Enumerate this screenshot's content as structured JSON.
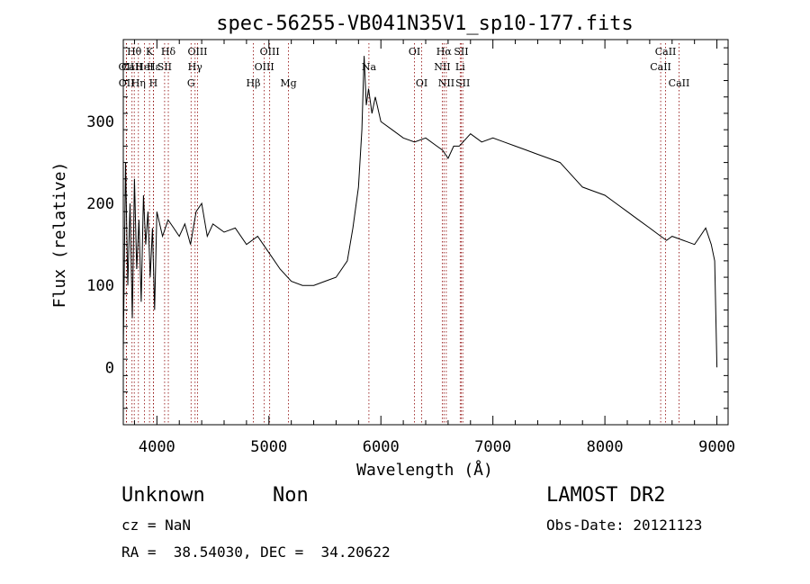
{
  "chart_data": {
    "type": "line",
    "title": "spec-56255-VB041N35V1_sp10-177.fits",
    "xlabel": "Wavelength (Å)",
    "ylabel": "Flux (relative)",
    "xlim": [
      3700,
      9100
    ],
    "ylim": [
      -70,
      400
    ],
    "x_ticks": [
      4000,
      5000,
      6000,
      7000,
      8000,
      9000
    ],
    "y_ticks": [
      0,
      100,
      200,
      300
    ],
    "line_color": "#000000",
    "marker_color": "#8b0000",
    "series": [
      {
        "x": [
          3700,
          3720,
          3740,
          3760,
          3780,
          3800,
          3820,
          3840,
          3860,
          3880,
          3900,
          3920,
          3940,
          3960,
          3980,
          4000,
          4050,
          4100,
          4150,
          4200,
          4250,
          4300,
          4350,
          4400,
          4450,
          4500,
          4600,
          4700,
          4800,
          4900,
          5000,
          5100,
          5200,
          5300,
          5400,
          5500,
          5600,
          5700,
          5750,
          5800,
          5830,
          5850,
          5870,
          5890,
          5920,
          5950,
          6000,
          6100,
          6200,
          6300,
          6400,
          6500,
          6550,
          6600,
          6650,
          6700,
          6800,
          6900,
          7000,
          7100,
          7200,
          7300,
          7400,
          7500,
          7600,
          7700,
          7800,
          7900,
          8000,
          8100,
          8200,
          8300,
          8400,
          8450,
          8500,
          8550,
          8600,
          8700,
          8800,
          8850,
          8900,
          8950,
          8980,
          9000
        ],
        "y": [
          20,
          250,
          100,
          200,
          60,
          230,
          120,
          180,
          80,
          210,
          150,
          190,
          110,
          170,
          70,
          190,
          160,
          180,
          170,
          160,
          175,
          150,
          190,
          200,
          160,
          175,
          165,
          170,
          150,
          160,
          140,
          120,
          105,
          100,
          100,
          105,
          110,
          130,
          170,
          220,
          290,
          380,
          320,
          340,
          310,
          330,
          300,
          290,
          280,
          275,
          280,
          270,
          265,
          255,
          270,
          270,
          285,
          275,
          280,
          275,
          270,
          265,
          260,
          255,
          250,
          235,
          220,
          215,
          210,
          200,
          190,
          180,
          170,
          165,
          160,
          155,
          160,
          155,
          150,
          160,
          170,
          150,
          130,
          0
        ]
      }
    ],
    "line_markers": [
      {
        "label": "Hθ",
        "x": 3798,
        "row": 0
      },
      {
        "label": "OII",
        "x": 3727,
        "row": 1
      },
      {
        "label": "OII",
        "x": 3729,
        "row": 2
      },
      {
        "label": "CaII",
        "x": 3778,
        "row": 1
      },
      {
        "label": "K",
        "x": 3934,
        "row": 0
      },
      {
        "label": "Hε",
        "x": 3970,
        "row": 1
      },
      {
        "label": "Hη",
        "x": 3835,
        "row": 2
      },
      {
        "label": "H",
        "x": 3969,
        "row": 2
      },
      {
        "label": "HeI",
        "x": 3889,
        "row": 1
      },
      {
        "label": "Hδ",
        "x": 4102,
        "row": 0
      },
      {
        "label": "SII",
        "x": 4069,
        "row": 1
      },
      {
        "label": "OIII",
        "x": 4363,
        "row": 0
      },
      {
        "label": "Hγ",
        "x": 4341,
        "row": 1
      },
      {
        "label": "G",
        "x": 4305,
        "row": 2
      },
      {
        "label": "Hβ",
        "x": 4861,
        "row": 2
      },
      {
        "label": "OIII",
        "x": 5007,
        "row": 0
      },
      {
        "label": "OIII",
        "x": 4959,
        "row": 1
      },
      {
        "label": "Mg",
        "x": 5175,
        "row": 2
      },
      {
        "label": "Na",
        "x": 5893,
        "row": 1
      },
      {
        "label": "OI",
        "x": 6300,
        "row": 0
      },
      {
        "label": "OI",
        "x": 6364,
        "row": 2
      },
      {
        "label": "Hα",
        "x": 6563,
        "row": 0
      },
      {
        "label": "NII",
        "x": 6548,
        "row": 1
      },
      {
        "label": "NII",
        "x": 6584,
        "row": 2
      },
      {
        "label": "SII",
        "x": 6717,
        "row": 0
      },
      {
        "label": "Li",
        "x": 6708,
        "row": 1
      },
      {
        "label": "SII",
        "x": 6731,
        "row": 2
      },
      {
        "label": "CaII",
        "x": 8542,
        "row": 0
      },
      {
        "label": "CaII",
        "x": 8498,
        "row": 1
      },
      {
        "label": "CaII",
        "x": 8662,
        "row": 2
      }
    ]
  },
  "info": {
    "object_class": "Unknown",
    "subclass": "Non",
    "survey": "LAMOST DR2",
    "redshift": "cz = NaN",
    "obs_date": "Obs-Date: 20121123",
    "coords": "RA =  38.54030, DEC =  34.20622"
  }
}
